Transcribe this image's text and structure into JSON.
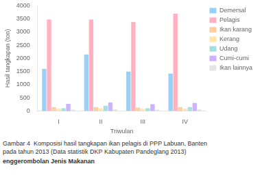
{
  "chart_data": {
    "type": "bar",
    "categories": [
      "I",
      "II",
      "III",
      "IV"
    ],
    "xlabel": "Triwulan",
    "ylabel": "Hasil tangkapan (ton)",
    "ylim": [
      0,
      4000
    ],
    "yticks": [
      0,
      500,
      1000,
      1500,
      2000,
      2500,
      3000,
      3500,
      4000
    ],
    "grid": false,
    "legend": "right",
    "series": [
      {
        "name": "Demersal",
        "values": [
          1600,
          2150,
          1500,
          1420
        ]
      },
      {
        "name": "Pelagis",
        "values": [
          3480,
          3480,
          3380,
          3700
        ]
      },
      {
        "name": "Ikan karang",
        "values": [
          150,
          150,
          130,
          150
        ]
      },
      {
        "name": "Kerang",
        "values": [
          80,
          100,
          80,
          90
        ]
      },
      {
        "name": "Udang",
        "values": [
          100,
          200,
          100,
          150
        ]
      },
      {
        "name": "Cumi-cumi",
        "values": [
          270,
          320,
          260,
          300
        ]
      },
      {
        "name": "Ikan lainnya",
        "values": [
          50,
          60,
          50,
          55
        ]
      }
    ],
    "annotations": [
      "Gambar 4  Komposisi hasil tangkapan ikan pelagis di PPP Labuan, Banten",
      "pada tahun 2013 (Data statistik DKP Kabupaten Pandeglang 2013)",
      "enggerombolan Jenis Makanan"
    ]
  }
}
